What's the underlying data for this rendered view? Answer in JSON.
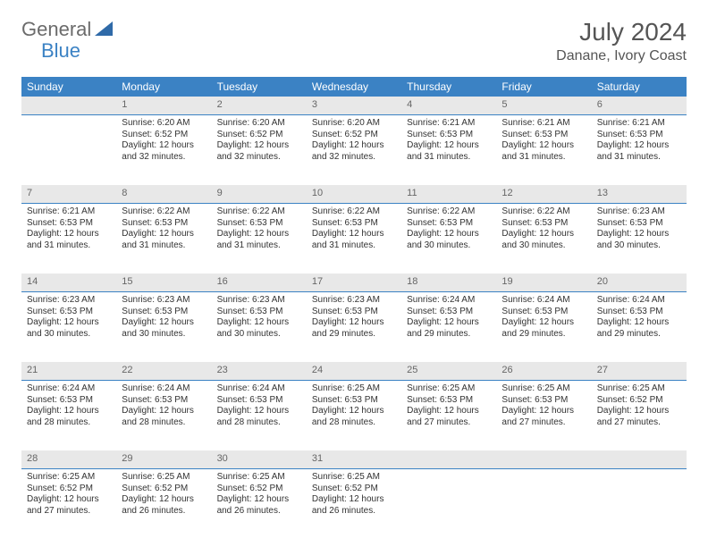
{
  "logo": {
    "text_gray": "General",
    "text_blue": "Blue",
    "gray_color": "#6b6b6b",
    "blue_color": "#3b82c4"
  },
  "header": {
    "month_title": "July 2024",
    "location": "Danane, Ivory Coast",
    "title_fontsize": 28,
    "location_fontsize": 16,
    "title_color": "#555555"
  },
  "calendar": {
    "weekday_bg": "#3b82c4",
    "weekday_text_color": "#ffffff",
    "daynum_bg": "#e8e8e8",
    "daynum_border": "#3b82c4",
    "body_text_color": "#333333",
    "weekdays": [
      "Sunday",
      "Monday",
      "Tuesday",
      "Wednesday",
      "Thursday",
      "Friday",
      "Saturday"
    ],
    "weeks": [
      [
        null,
        {
          "n": "1",
          "sunrise": "6:20 AM",
          "sunset": "6:52 PM",
          "daylight": "12 hours and 32 minutes."
        },
        {
          "n": "2",
          "sunrise": "6:20 AM",
          "sunset": "6:52 PM",
          "daylight": "12 hours and 32 minutes."
        },
        {
          "n": "3",
          "sunrise": "6:20 AM",
          "sunset": "6:52 PM",
          "daylight": "12 hours and 32 minutes."
        },
        {
          "n": "4",
          "sunrise": "6:21 AM",
          "sunset": "6:53 PM",
          "daylight": "12 hours and 31 minutes."
        },
        {
          "n": "5",
          "sunrise": "6:21 AM",
          "sunset": "6:53 PM",
          "daylight": "12 hours and 31 minutes."
        },
        {
          "n": "6",
          "sunrise": "6:21 AM",
          "sunset": "6:53 PM",
          "daylight": "12 hours and 31 minutes."
        }
      ],
      [
        {
          "n": "7",
          "sunrise": "6:21 AM",
          "sunset": "6:53 PM",
          "daylight": "12 hours and 31 minutes."
        },
        {
          "n": "8",
          "sunrise": "6:22 AM",
          "sunset": "6:53 PM",
          "daylight": "12 hours and 31 minutes."
        },
        {
          "n": "9",
          "sunrise": "6:22 AM",
          "sunset": "6:53 PM",
          "daylight": "12 hours and 31 minutes."
        },
        {
          "n": "10",
          "sunrise": "6:22 AM",
          "sunset": "6:53 PM",
          "daylight": "12 hours and 31 minutes."
        },
        {
          "n": "11",
          "sunrise": "6:22 AM",
          "sunset": "6:53 PM",
          "daylight": "12 hours and 30 minutes."
        },
        {
          "n": "12",
          "sunrise": "6:22 AM",
          "sunset": "6:53 PM",
          "daylight": "12 hours and 30 minutes."
        },
        {
          "n": "13",
          "sunrise": "6:23 AM",
          "sunset": "6:53 PM",
          "daylight": "12 hours and 30 minutes."
        }
      ],
      [
        {
          "n": "14",
          "sunrise": "6:23 AM",
          "sunset": "6:53 PM",
          "daylight": "12 hours and 30 minutes."
        },
        {
          "n": "15",
          "sunrise": "6:23 AM",
          "sunset": "6:53 PM",
          "daylight": "12 hours and 30 minutes."
        },
        {
          "n": "16",
          "sunrise": "6:23 AM",
          "sunset": "6:53 PM",
          "daylight": "12 hours and 30 minutes."
        },
        {
          "n": "17",
          "sunrise": "6:23 AM",
          "sunset": "6:53 PM",
          "daylight": "12 hours and 29 minutes."
        },
        {
          "n": "18",
          "sunrise": "6:24 AM",
          "sunset": "6:53 PM",
          "daylight": "12 hours and 29 minutes."
        },
        {
          "n": "19",
          "sunrise": "6:24 AM",
          "sunset": "6:53 PM",
          "daylight": "12 hours and 29 minutes."
        },
        {
          "n": "20",
          "sunrise": "6:24 AM",
          "sunset": "6:53 PM",
          "daylight": "12 hours and 29 minutes."
        }
      ],
      [
        {
          "n": "21",
          "sunrise": "6:24 AM",
          "sunset": "6:53 PM",
          "daylight": "12 hours and 28 minutes."
        },
        {
          "n": "22",
          "sunrise": "6:24 AM",
          "sunset": "6:53 PM",
          "daylight": "12 hours and 28 minutes."
        },
        {
          "n": "23",
          "sunrise": "6:24 AM",
          "sunset": "6:53 PM",
          "daylight": "12 hours and 28 minutes."
        },
        {
          "n": "24",
          "sunrise": "6:25 AM",
          "sunset": "6:53 PM",
          "daylight": "12 hours and 28 minutes."
        },
        {
          "n": "25",
          "sunrise": "6:25 AM",
          "sunset": "6:53 PM",
          "daylight": "12 hours and 27 minutes."
        },
        {
          "n": "26",
          "sunrise": "6:25 AM",
          "sunset": "6:53 PM",
          "daylight": "12 hours and 27 minutes."
        },
        {
          "n": "27",
          "sunrise": "6:25 AM",
          "sunset": "6:52 PM",
          "daylight": "12 hours and 27 minutes."
        }
      ],
      [
        {
          "n": "28",
          "sunrise": "6:25 AM",
          "sunset": "6:52 PM",
          "daylight": "12 hours and 27 minutes."
        },
        {
          "n": "29",
          "sunrise": "6:25 AM",
          "sunset": "6:52 PM",
          "daylight": "12 hours and 26 minutes."
        },
        {
          "n": "30",
          "sunrise": "6:25 AM",
          "sunset": "6:52 PM",
          "daylight": "12 hours and 26 minutes."
        },
        {
          "n": "31",
          "sunrise": "6:25 AM",
          "sunset": "6:52 PM",
          "daylight": "12 hours and 26 minutes."
        },
        null,
        null,
        null
      ]
    ],
    "labels": {
      "sunrise": "Sunrise:",
      "sunset": "Sunset:",
      "daylight": "Daylight:"
    }
  }
}
